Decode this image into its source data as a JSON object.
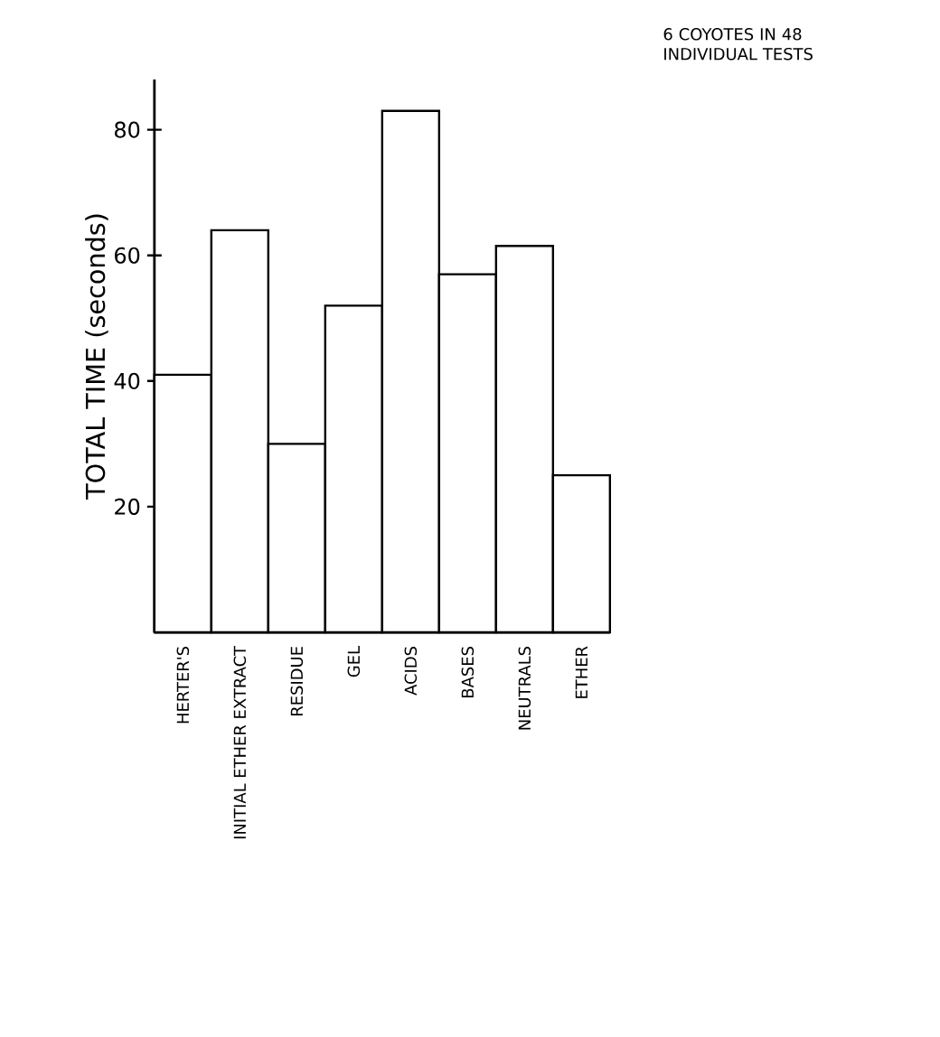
{
  "chart_data": {
    "type": "bar",
    "ylabel": "TOTAL TIME (seconds)",
    "categories": [
      "HERTER'S",
      "INITIAL ETHER EXTRACT",
      "RESIDUE",
      "GEL",
      "ACIDS",
      "BASES",
      "NEUTRALS",
      "ETHER"
    ],
    "values": [
      41,
      64,
      30,
      52,
      83,
      57,
      61.5,
      25
    ],
    "color": "#ffffff",
    "ylim": [
      0,
      88
    ],
    "yticks": [
      20,
      40,
      60,
      80
    ],
    "annotations": [
      "6 COYOTES IN 48 INDIVIDUAL TESTS"
    ]
  }
}
